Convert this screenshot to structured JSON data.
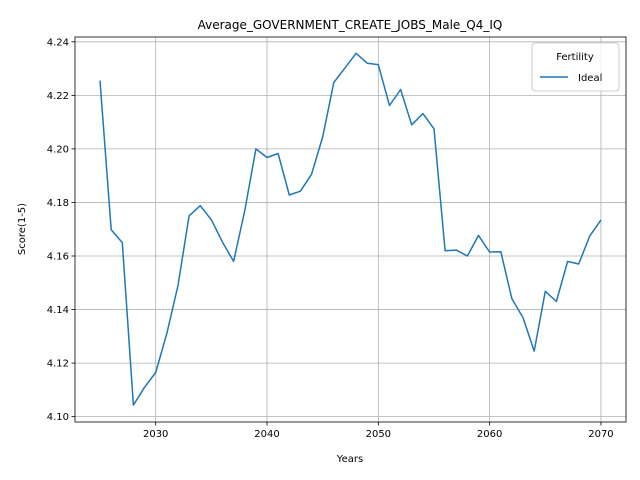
{
  "chart_data": {
    "type": "line",
    "title": "Average_GOVERNMENT_CREATE_JOBS_Male_Q4_IQ",
    "xlabel": "Years",
    "ylabel": "Score(1-5)",
    "xlim": [
      2022.75,
      2072.25
    ],
    "ylim": [
      4.098,
      4.2418
    ],
    "x_ticks": [
      2030,
      2040,
      2050,
      2060,
      2070
    ],
    "y_ticks": [
      4.1,
      4.12,
      4.14,
      4.16,
      4.18,
      4.2,
      4.22,
      4.24
    ],
    "y_tick_labels": [
      "4.10",
      "4.12",
      "4.14",
      "4.16",
      "4.18",
      "4.20",
      "4.22",
      "4.24"
    ],
    "grid": true,
    "legend": {
      "title": "Fertility",
      "placement": "top-right"
    },
    "series": [
      {
        "name": "Ideal",
        "color": "#1f77b4",
        "x": [
          2025,
          2026,
          2027,
          2028,
          2029,
          2030,
          2031,
          2032,
          2033,
          2034,
          2035,
          2036,
          2037,
          2038,
          2039,
          2040,
          2041,
          2042,
          2043,
          2044,
          2045,
          2046,
          2047,
          2048,
          2049,
          2050,
          2051,
          2052,
          2053,
          2054,
          2055,
          2056,
          2057,
          2058,
          2059,
          2060,
          2061,
          2062,
          2063,
          2064,
          2065,
          2066,
          2067,
          2068,
          2069,
          2070
        ],
        "y": [
          4.2255,
          4.1698,
          4.165,
          4.1043,
          4.111,
          4.1165,
          4.131,
          4.149,
          4.175,
          4.1788,
          4.1735,
          4.1652,
          4.158,
          4.177,
          4.2,
          4.1968,
          4.1983,
          4.1828,
          4.1842,
          4.1905,
          4.2045,
          4.2248,
          4.2302,
          4.2357,
          4.232,
          4.2315,
          4.2162,
          4.2222,
          4.209,
          4.2132,
          4.2075,
          4.162,
          4.1622,
          4.16,
          4.1677,
          4.1615,
          4.1616,
          4.144,
          4.137,
          4.1245,
          4.1468,
          4.143,
          4.158,
          4.157,
          4.1675,
          4.1735
        ]
      }
    ]
  }
}
